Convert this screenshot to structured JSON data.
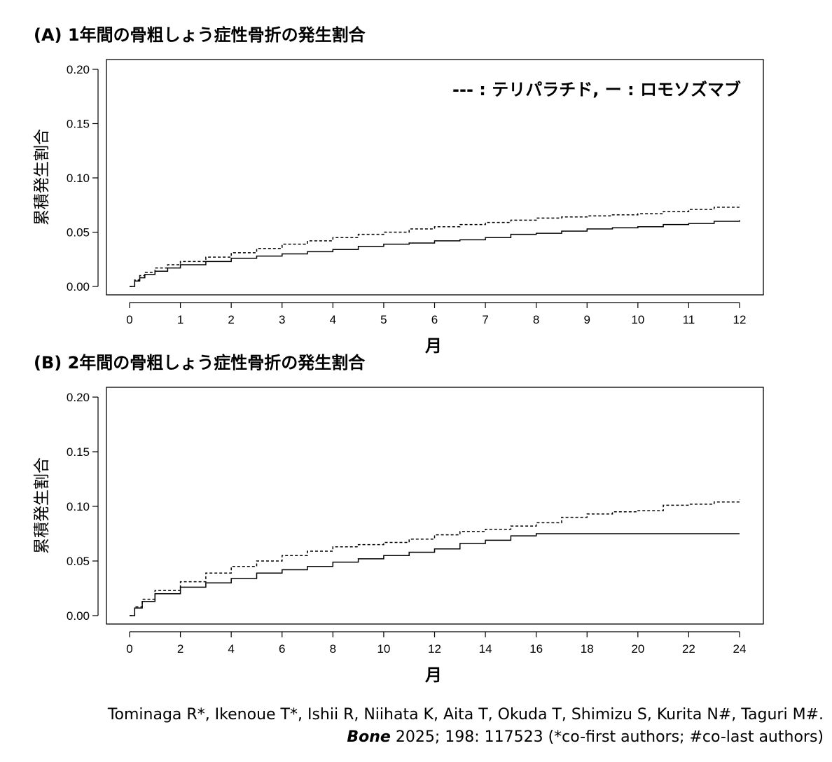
{
  "chart_data": [
    {
      "type": "line",
      "title": "(A) 1年間の骨粗しょう症性骨折の発生割合",
      "xlabel": "月",
      "ylabel": "累積発生割合",
      "xlim": [
        0,
        12
      ],
      "ylim": [
        0,
        0.2
      ],
      "x_ticks": [
        0,
        1,
        2,
        3,
        4,
        5,
        6,
        7,
        8,
        9,
        10,
        11,
        12
      ],
      "y_ticks": [
        "0.00",
        "0.05",
        "0.10",
        "0.15",
        "0.20"
      ],
      "grid": false,
      "legend_text": "--- : テリパラチド, ー : ロモソズマブ",
      "legend_position": "top-right",
      "series": [
        {
          "name": "テリパラチド",
          "line_style": "dashed",
          "x": [
            0,
            0.1,
            0.2,
            0.3,
            0.5,
            0.75,
            1,
            1.5,
            2,
            2.5,
            3,
            3.5,
            4,
            4.5,
            5,
            5.5,
            6,
            6.5,
            7,
            7.5,
            8,
            8.5,
            9,
            9.5,
            10,
            10.5,
            11,
            11.5,
            12
          ],
          "y": [
            0,
            0.006,
            0.01,
            0.013,
            0.017,
            0.02,
            0.023,
            0.027,
            0.031,
            0.035,
            0.039,
            0.042,
            0.045,
            0.048,
            0.05,
            0.053,
            0.055,
            0.057,
            0.059,
            0.061,
            0.063,
            0.064,
            0.065,
            0.066,
            0.067,
            0.069,
            0.071,
            0.073,
            0.075
          ]
        },
        {
          "name": "ロモソズマブ",
          "line_style": "solid",
          "x": [
            0,
            0.1,
            0.2,
            0.3,
            0.5,
            0.75,
            1,
            1.5,
            2,
            2.5,
            3,
            3.5,
            4,
            4.5,
            5,
            5.5,
            6,
            6.5,
            7,
            7.5,
            8,
            8.5,
            9,
            9.5,
            10,
            10.5,
            11,
            11.5,
            12
          ],
          "y": [
            0,
            0.005,
            0.008,
            0.011,
            0.014,
            0.017,
            0.02,
            0.023,
            0.026,
            0.028,
            0.03,
            0.032,
            0.034,
            0.037,
            0.039,
            0.04,
            0.042,
            0.043,
            0.045,
            0.048,
            0.049,
            0.051,
            0.053,
            0.054,
            0.055,
            0.057,
            0.058,
            0.06,
            0.061
          ]
        }
      ]
    },
    {
      "type": "line",
      "title": "(B) 2年間の骨粗しょう症性骨折の発生割合",
      "xlabel": "月",
      "ylabel": "累積発生割合",
      "xlim": [
        0,
        24
      ],
      "ylim": [
        0,
        0.2
      ],
      "x_ticks": [
        0,
        2,
        4,
        6,
        8,
        10,
        12,
        14,
        16,
        18,
        20,
        22,
        24
      ],
      "y_ticks": [
        "0.00",
        "0.05",
        "0.10",
        "0.15",
        "0.20"
      ],
      "grid": false,
      "series": [
        {
          "name": "テリパラチド",
          "line_style": "dashed",
          "x": [
            0,
            0.2,
            0.5,
            1,
            2,
            3,
            4,
            5,
            6,
            7,
            8,
            9,
            10,
            11,
            12,
            13,
            14,
            15,
            16,
            17,
            18,
            19,
            20,
            21,
            22,
            23,
            24
          ],
          "y": [
            0,
            0.008,
            0.015,
            0.023,
            0.031,
            0.039,
            0.045,
            0.05,
            0.055,
            0.059,
            0.063,
            0.065,
            0.067,
            0.07,
            0.074,
            0.077,
            0.079,
            0.082,
            0.085,
            0.09,
            0.093,
            0.095,
            0.096,
            0.101,
            0.102,
            0.104,
            0.106
          ]
        },
        {
          "name": "ロモソズマブ",
          "line_style": "solid",
          "x": [
            0,
            0.2,
            0.5,
            1,
            2,
            3,
            4,
            5,
            6,
            7,
            8,
            9,
            10,
            11,
            12,
            13,
            14,
            15,
            16,
            17,
            18,
            19,
            20,
            21,
            22,
            23,
            24
          ],
          "y": [
            0,
            0.007,
            0.013,
            0.02,
            0.026,
            0.03,
            0.034,
            0.039,
            0.042,
            0.045,
            0.049,
            0.052,
            0.055,
            0.058,
            0.061,
            0.066,
            0.069,
            0.073,
            0.075,
            0.075,
            0.075,
            0.075,
            0.075,
            0.075,
            0.075,
            0.075,
            0.075
          ]
        }
      ]
    }
  ],
  "citation": {
    "line1": "Tominaga R*, Ikenoue T*, Ishii R, Niihata K, Aita T, Okuda T, Shimizu S, Kurita N#, Taguri M#.",
    "journal": "Bone",
    "line2_rest": " 2025; 198: 117523 (*co-first authors; #co-last authors)"
  }
}
